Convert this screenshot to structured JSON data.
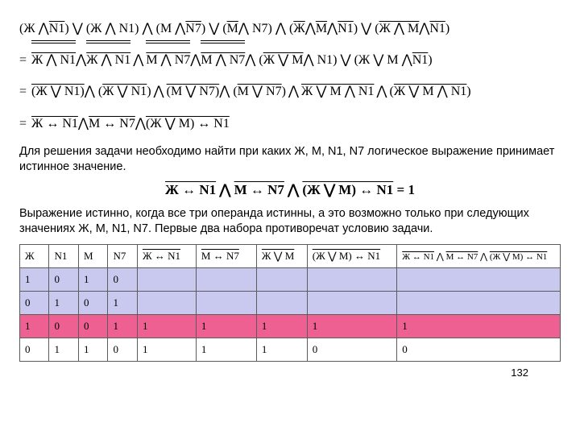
{
  "formulas": {
    "line1_parts": [
      "(Ж ⋀ ",
      {
        "ov": "N1"
      },
      ") ⋁ (Ж ⋀ N1) ⋀ (М ⋀ ",
      {
        "ov": "N7"
      },
      ") ⋁ (",
      {
        "ov": "М"
      },
      " ⋀ N7) ⋀ (",
      {
        "ov": "Ж"
      },
      " ⋀ ",
      {
        "ov": "М"
      },
      " ⋀ ",
      {
        "ov": "N1"
      },
      ") ⋁ (",
      {
        "ov": "Ж"
      },
      " ⋀ ",
      {
        "ov": "М"
      },
      " ⋀ ",
      {
        "ov": "N1"
      },
      ")"
    ],
    "line2_prefix": "= ",
    "line3_prefix": "= ",
    "line4_prefix": "= "
  },
  "text": {
    "p1": "Для решения задачи необходимо найти при каких Ж, М, N1, N7 логическое выражение принимает истинное значение.",
    "p2": "Выражение истинно, когда все три операнда истинны, а это возможно только при следующих значениях Ж, М, N1, N7. Первые два набора противоречат условию задачи."
  },
  "center_formula_eq": " = 1",
  "table": {
    "headers_plain": [
      "Ж",
      "N1",
      "М",
      "N7"
    ],
    "header_f1": "Ж ↔ N1",
    "header_f2": "М ↔ N7",
    "header_f3": "Ж ⋁ М",
    "header_f4": "(Ж ⋁ М) ↔ N1",
    "header_f5": "Ж ↔ N1 ⋀ М ↔ N7 ⋀ (Ж ⋁ М) ↔ N1",
    "col_widths": [
      "36px",
      "36px",
      "36px",
      "36px",
      "72px",
      "74px",
      "62px",
      "110px",
      "200px"
    ],
    "rows": [
      {
        "class": "row-lav",
        "cells": [
          "1",
          "0",
          "1",
          "0",
          "",
          "",
          "",
          "",
          ""
        ]
      },
      {
        "class": "row-lav",
        "cells": [
          "0",
          "1",
          "0",
          "1",
          "",
          "",
          "",
          "",
          ""
        ]
      },
      {
        "class": "row-pink",
        "cells": [
          "1",
          "0",
          "0",
          "1",
          "1",
          "1",
          "1",
          "1",
          "1"
        ]
      },
      {
        "class": "",
        "cells": [
          "0",
          "1",
          "1",
          "0",
          "1",
          "1",
          "1",
          "0",
          "0"
        ]
      }
    ]
  },
  "page_number": "132",
  "colors": {
    "lavender": "#c9c9f0",
    "pink": "#ed6091",
    "border": "#5b5b5b"
  }
}
